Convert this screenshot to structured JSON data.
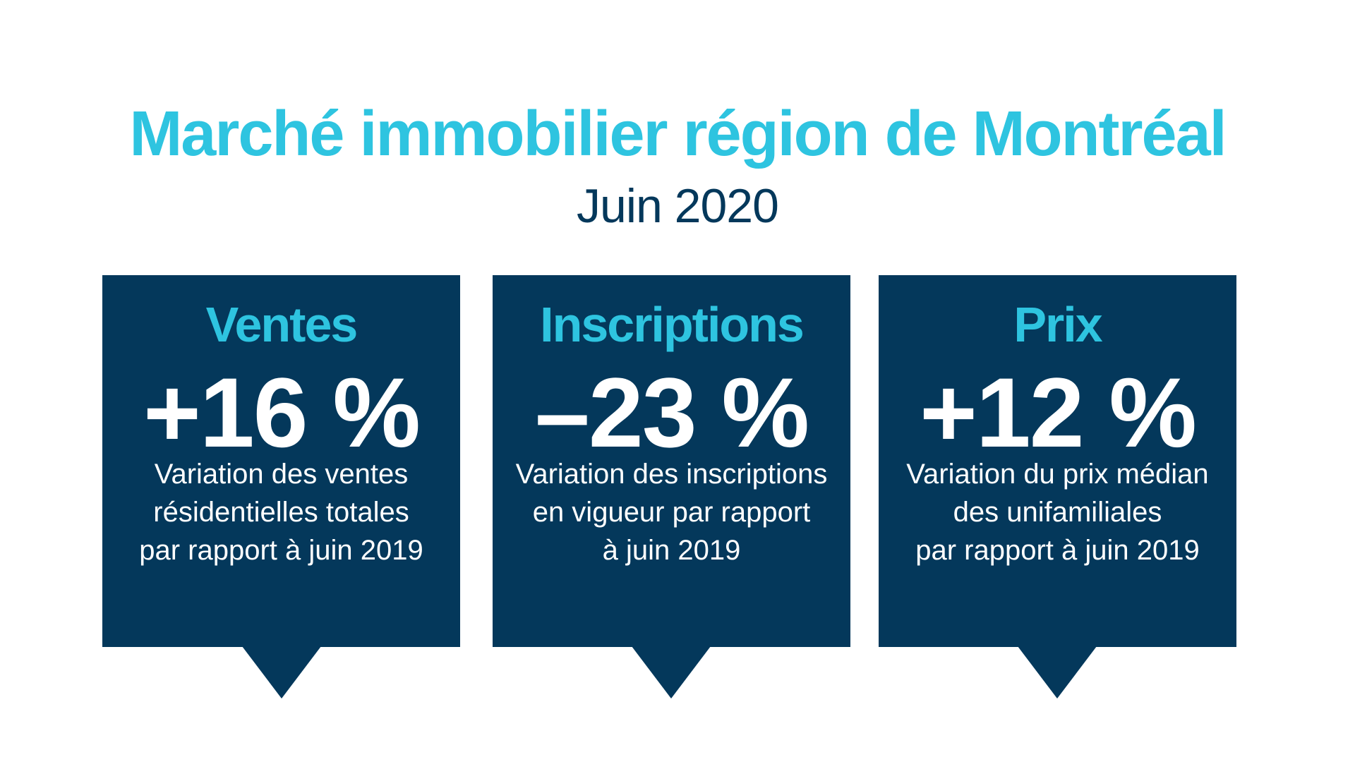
{
  "header": {
    "title": "Marché immobilier région de Montréal",
    "subtitle": "Juin 2020"
  },
  "colors": {
    "accent": "#2ec4e0",
    "navy": "#04385b",
    "background": "#ffffff"
  },
  "cards": [
    {
      "title": "Ventes",
      "value": "+16 %",
      "lines": [
        "Variation des ventes",
        "résidentielles totales",
        "par rapport à juin 2019"
      ]
    },
    {
      "title": "Inscriptions",
      "value": "–23 %",
      "lines": [
        "Variation des inscriptions",
        "en vigueur par rapport",
        "à juin 2019"
      ]
    },
    {
      "title": "Prix",
      "value": "+12 %",
      "lines": [
        "Variation du prix médian",
        "des unifamiliales",
        "par rapport à juin 2019"
      ]
    }
  ]
}
